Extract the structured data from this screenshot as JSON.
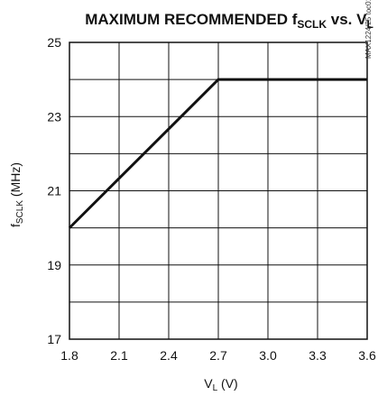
{
  "chart_data": {
    "type": "line",
    "title": {
      "prefix": "MAXIMUM RECOMMENDED f",
      "prefix_sub": "SCLK",
      "middle": " vs. V",
      "middle_sub": "L"
    },
    "xlabel": {
      "main": "V",
      "sub": "L",
      "suffix": " (V)"
    },
    "ylabel": {
      "main": "f",
      "sub": "SCLK",
      "suffix": " (MHz)"
    },
    "xlim": [
      1.8,
      3.6
    ],
    "ylim": [
      17,
      25
    ],
    "x_ticks": [
      "1.8",
      "2.1",
      "2.4",
      "2.7",
      "3.0",
      "3.3",
      "3.6"
    ],
    "y_ticks": [
      "17",
      "19",
      "21",
      "23",
      "25"
    ],
    "grid": true,
    "legend": "none",
    "series": [
      {
        "x": [
          1.8,
          2.7,
          3.6
        ],
        "y": [
          20,
          24,
          24
        ]
      }
    ],
    "annotation": "MAX1224/25 toc01",
    "colors": {
      "line": "#111111",
      "grid": "#111111",
      "frame": "#111111"
    }
  }
}
